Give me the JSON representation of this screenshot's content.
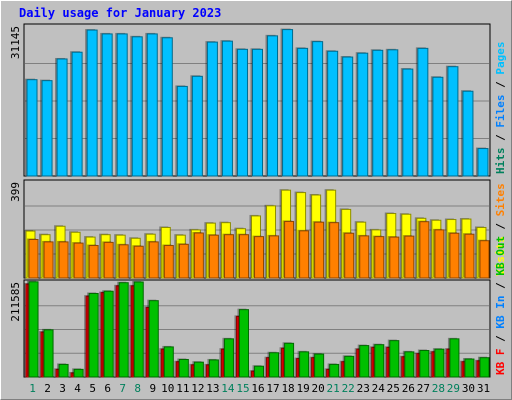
{
  "chart_data": {
    "type": "bar",
    "title": "Daily usage for January 2023",
    "categories": [
      "1",
      "2",
      "3",
      "4",
      "5",
      "6",
      "7",
      "8",
      "9",
      "10",
      "11",
      "12",
      "13",
      "14",
      "15",
      "16",
      "17",
      "18",
      "19",
      "20",
      "21",
      "22",
      "23",
      "24",
      "25",
      "26",
      "27",
      "28",
      "29",
      "30",
      "31"
    ],
    "weekend_days": [
      "1",
      "7",
      "8",
      "14",
      "15",
      "21",
      "22",
      "28",
      "29"
    ],
    "colors": {
      "background": "#c0c0c0",
      "title": "#0000ff",
      "weekday_label": "#000000",
      "weekend_label": "#00805c",
      "hits": "#00805c",
      "files": "#0080ff",
      "pages": "#00c0ff",
      "visits": "#ffff00",
      "sites": "#ff8000",
      "kb_in": "#0080ff",
      "kb_out": "#00c000",
      "kb_f": "#ff0000"
    },
    "panels": [
      {
        "id": "hits-files-pages",
        "axis_max_label": "31145",
        "ylim": [
          0,
          31145
        ],
        "legend": [
          {
            "text": "Hits",
            "color": "#00805c"
          },
          {
            "text": "Files",
            "color": "#0080ff"
          },
          {
            "text": "Pages",
            "color": "#00c0ff"
          }
        ],
        "series": [
          {
            "name": "Pages",
            "values": [
              20000,
              19800,
              24300,
              25700,
              30300,
              29500,
              29500,
              28900,
              29500,
              28700,
              18600,
              20700,
              27800,
              28000,
              26300,
              26300,
              29100,
              30400,
              26500,
              27900,
              25900,
              24700,
              25500,
              26100,
              26200,
              22200,
              26500,
              20500,
              22700,
              17600,
              5700
            ]
          }
        ]
      },
      {
        "id": "visits-sites",
        "axis_max_label": "399",
        "ylim": [
          0,
          399
        ],
        "legend": [
          {
            "text": "Visits",
            "color": "#ffff00"
          },
          {
            "text": "Sites",
            "color": "#ff8000"
          }
        ],
        "series": [
          {
            "name": "Visits",
            "values": [
              195,
              180,
              215,
              190,
              170,
              180,
              178,
              165,
              182,
              210,
              178,
              200,
              228,
              230,
              205,
              258,
              300,
              365,
              355,
              345,
              365,
              285,
              232,
              200,
              268,
              265,
              248,
              240,
              243,
              245,
              210
            ]
          },
          {
            "name": "Sites",
            "values": [
              160,
              150,
              150,
              145,
              135,
              148,
              138,
              132,
              150,
              135,
              140,
              187,
              178,
              180,
              180,
              172,
              175,
              235,
              196,
              232,
              230,
              186,
              175,
              172,
              170,
              174,
              234,
              200,
              186,
              182,
              155
            ]
          }
        ]
      },
      {
        "id": "kbytes",
        "axis_max_label": "211585",
        "ylim": [
          0,
          211585
        ],
        "legend": [
          {
            "text": "KB F",
            "color": "#ff0000"
          },
          {
            "text": "KB In",
            "color": "#0080ff"
          },
          {
            "text": "KB Out",
            "color": "#00c000"
          }
        ],
        "series": [
          {
            "name": "KB F",
            "values": [
              207000,
              100000,
              17000,
              9000,
              180000,
              188000,
              203000,
              203000,
              155000,
              62000,
              34000,
              27000,
              27000,
              62000,
              135000,
              13000,
              43000,
              64000,
              41000,
              43000,
              17000,
              34000,
              62000,
              66000,
              66000,
              45000,
              52000,
              56000,
              62000,
              34000,
              36000
            ]
          },
          {
            "name": "KB Out",
            "values": [
              212000,
              105000,
              28000,
              17000,
              186000,
              191000,
              210000,
              211585,
              170000,
              67000,
              39000,
              33000,
              38000,
              85000,
              150000,
              24000,
              54000,
              75000,
              56000,
              51000,
              28000,
              46000,
              70000,
              72000,
              81000,
              56000,
              59000,
              62000,
              85000,
              40000,
              43000
            ]
          }
        ]
      }
    ]
  }
}
